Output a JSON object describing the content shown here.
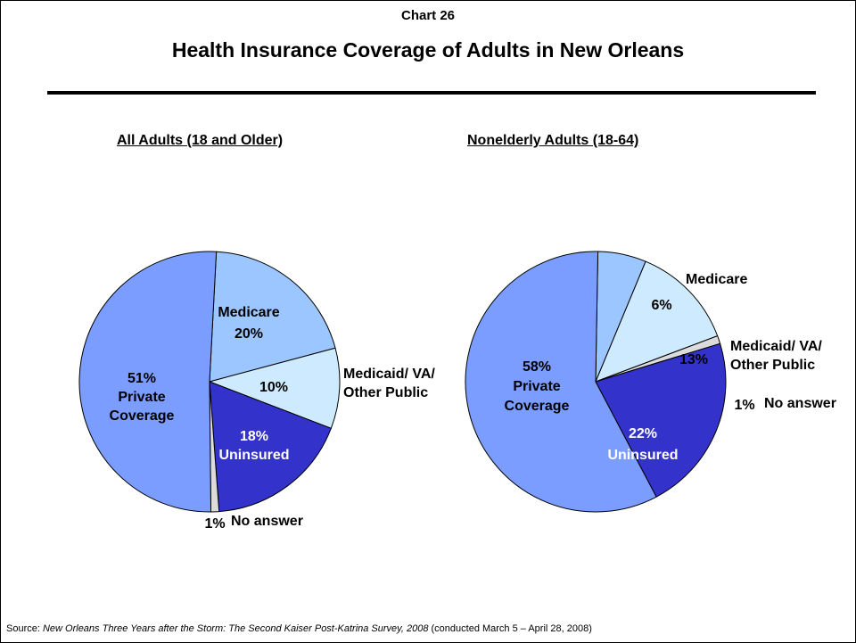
{
  "header": {
    "chart_number": "Chart 26",
    "title": "Health Insurance Coverage of Adults in New Orleans"
  },
  "footer": {
    "source_prefix": "Source: ",
    "source_title": "New Orleans Three Years after the Storm: The Second Kaiser Post-Katrina Survey, 2008",
    "source_suffix": "  (conducted March 5 – April 28, 2008)"
  },
  "colors": {
    "private": "#7b9dff",
    "medicare": "#9cc6ff",
    "medicaid": "#cdeaff",
    "no_answer": "#dcdcdc",
    "uninsured": "#3333cc"
  },
  "chart_data": [
    {
      "type": "pie",
      "title": "All Adults (18 and Older)",
      "slices": [
        {
          "key": "medicare",
          "label": "Medicare",
          "value": 20,
          "value_label": "20%"
        },
        {
          "key": "medicaid",
          "label": "Medicaid/ VA/ Other Public",
          "value": 10,
          "value_label": "10%"
        },
        {
          "key": "uninsured",
          "label": "Uninsured",
          "value": 18,
          "value_label": "18%"
        },
        {
          "key": "no_answer",
          "label": "No answer",
          "value": 1,
          "value_label": "1%"
        },
        {
          "key": "private",
          "label": "Private Coverage",
          "value": 51,
          "value_label": "51%"
        }
      ]
    },
    {
      "type": "pie",
      "title": "Nonelderly Adults (18-64)",
      "slices": [
        {
          "key": "medicare",
          "label": "Medicare",
          "value": 6,
          "value_label": "6%"
        },
        {
          "key": "medicaid",
          "label": "Medicaid/ VA/ Other Public",
          "value": 13,
          "value_label": "13%"
        },
        {
          "key": "no_answer",
          "label": "No answer",
          "value": 1,
          "value_label": "1%"
        },
        {
          "key": "uninsured",
          "label": "Uninsured",
          "value": 22,
          "value_label": "22%"
        },
        {
          "key": "private",
          "label": "Private Coverage",
          "value": 58,
          "value_label": "58%"
        }
      ]
    }
  ]
}
